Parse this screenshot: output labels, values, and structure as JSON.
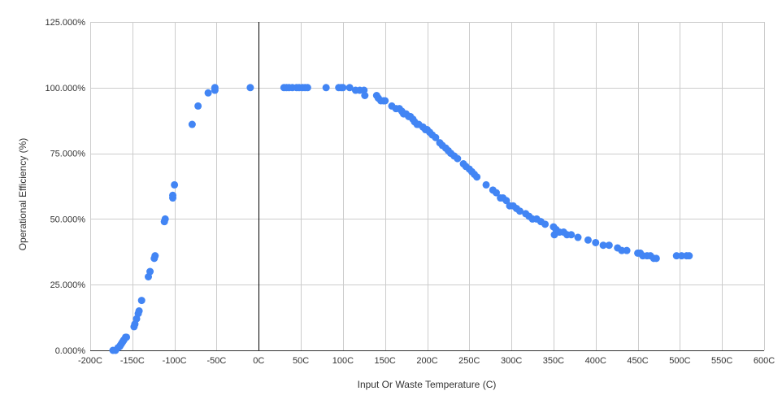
{
  "chart_data": {
    "type": "scatter",
    "title": "",
    "xlabel": "Input Or Waste Temperature (C)",
    "ylabel": "Operational Efficiency (%)",
    "xlim": [
      -200,
      600
    ],
    "ylim": [
      0,
      1.25
    ],
    "x_ticks": [
      -200,
      -150,
      -100,
      -50,
      0,
      50,
      100,
      150,
      200,
      250,
      300,
      350,
      400,
      450,
      500,
      550,
      600
    ],
    "x_tick_labels": [
      "-200C",
      "-150C",
      "-100C",
      "-50C",
      "0C",
      "50C",
      "100C",
      "150C",
      "200C",
      "250C",
      "300C",
      "350C",
      "400C",
      "450C",
      "500C",
      "550C",
      "600C"
    ],
    "y_ticks": [
      0,
      0.25,
      0.5,
      0.75,
      1.0,
      1.25
    ],
    "y_tick_labels": [
      "0.000%",
      "25.000%",
      "50.000%",
      "75.000%",
      "100.000%",
      "125.000%"
    ],
    "grid": true,
    "legend": "none",
    "colors": {
      "points": "#4285f4",
      "grid": "#cccccc",
      "zero_line": "#000000"
    },
    "series": [
      {
        "points": [
          [
            -173,
            0.0
          ],
          [
            -170,
            0.0
          ],
          [
            -167,
            0.01
          ],
          [
            -165,
            0.015
          ],
          [
            -164,
            0.02
          ],
          [
            -163,
            0.025
          ],
          [
            -162,
            0.03
          ],
          [
            -161,
            0.035
          ],
          [
            -160,
            0.04
          ],
          [
            -158,
            0.05
          ],
          [
            -157,
            0.05
          ],
          [
            -148,
            0.09
          ],
          [
            -147,
            0.1
          ],
          [
            -145,
            0.12
          ],
          [
            -143,
            0.14
          ],
          [
            -142,
            0.15
          ],
          [
            -139,
            0.19
          ],
          [
            -131,
            0.28
          ],
          [
            -129,
            0.3
          ],
          [
            -124,
            0.35
          ],
          [
            -123,
            0.36
          ],
          [
            -112,
            0.49
          ],
          [
            -111,
            0.5
          ],
          [
            -102,
            0.58
          ],
          [
            -102,
            0.59
          ],
          [
            -100,
            0.63
          ],
          [
            -79,
            0.86
          ],
          [
            -72,
            0.93
          ],
          [
            -60,
            0.98
          ],
          [
            -52,
            0.99
          ],
          [
            -52,
            1.0
          ],
          [
            -10,
            1.0
          ],
          [
            30,
            1.0
          ],
          [
            33,
            1.0
          ],
          [
            36,
            1.0
          ],
          [
            40,
            1.0
          ],
          [
            45,
            1.0
          ],
          [
            48,
            1.0
          ],
          [
            52,
            1.0
          ],
          [
            55,
            1.0
          ],
          [
            58,
            1.0
          ],
          [
            80,
            1.0
          ],
          [
            95,
            1.0
          ],
          [
            98,
            1.0
          ],
          [
            100,
            1.0
          ],
          [
            108,
            1.0
          ],
          [
            115,
            0.99
          ],
          [
            120,
            0.99
          ],
          [
            125,
            0.99
          ],
          [
            126,
            0.97
          ],
          [
            140,
            0.97
          ],
          [
            142,
            0.96
          ],
          [
            145,
            0.95
          ],
          [
            148,
            0.95
          ],
          [
            150,
            0.95
          ],
          [
            158,
            0.93
          ],
          [
            163,
            0.92
          ],
          [
            167,
            0.92
          ],
          [
            170,
            0.91
          ],
          [
            172,
            0.9
          ],
          [
            175,
            0.9
          ],
          [
            178,
            0.89
          ],
          [
            180,
            0.89
          ],
          [
            183,
            0.88
          ],
          [
            185,
            0.87
          ],
          [
            188,
            0.86
          ],
          [
            190,
            0.86
          ],
          [
            195,
            0.85
          ],
          [
            198,
            0.84
          ],
          [
            200,
            0.84
          ],
          [
            203,
            0.83
          ],
          [
            206,
            0.82
          ],
          [
            210,
            0.81
          ],
          [
            215,
            0.79
          ],
          [
            218,
            0.78
          ],
          [
            222,
            0.77
          ],
          [
            225,
            0.76
          ],
          [
            228,
            0.75
          ],
          [
            232,
            0.74
          ],
          [
            236,
            0.73
          ],
          [
            243,
            0.71
          ],
          [
            246,
            0.7
          ],
          [
            250,
            0.69
          ],
          [
            253,
            0.68
          ],
          [
            256,
            0.67
          ],
          [
            259,
            0.66
          ],
          [
            270,
            0.63
          ],
          [
            278,
            0.61
          ],
          [
            282,
            0.6
          ],
          [
            287,
            0.58
          ],
          [
            290,
            0.58
          ],
          [
            294,
            0.57
          ],
          [
            298,
            0.55
          ],
          [
            302,
            0.55
          ],
          [
            306,
            0.54
          ],
          [
            310,
            0.53
          ],
          [
            317,
            0.52
          ],
          [
            321,
            0.51
          ],
          [
            325,
            0.5
          ],
          [
            330,
            0.5
          ],
          [
            335,
            0.49
          ],
          [
            340,
            0.48
          ],
          [
            350,
            0.47
          ],
          [
            351,
            0.44
          ],
          [
            353,
            0.46
          ],
          [
            357,
            0.45
          ],
          [
            362,
            0.45
          ],
          [
            366,
            0.44
          ],
          [
            371,
            0.44
          ],
          [
            379,
            0.43
          ],
          [
            391,
            0.42
          ],
          [
            400,
            0.41
          ],
          [
            409,
            0.4
          ],
          [
            416,
            0.4
          ],
          [
            426,
            0.39
          ],
          [
            431,
            0.38
          ],
          [
            437,
            0.38
          ],
          [
            450,
            0.37
          ],
          [
            453,
            0.37
          ],
          [
            456,
            0.36
          ],
          [
            461,
            0.36
          ],
          [
            465,
            0.36
          ],
          [
            469,
            0.35
          ],
          [
            472,
            0.35
          ],
          [
            496,
            0.36
          ],
          [
            502,
            0.36
          ],
          [
            508,
            0.36
          ],
          [
            511,
            0.36
          ]
        ]
      }
    ]
  }
}
